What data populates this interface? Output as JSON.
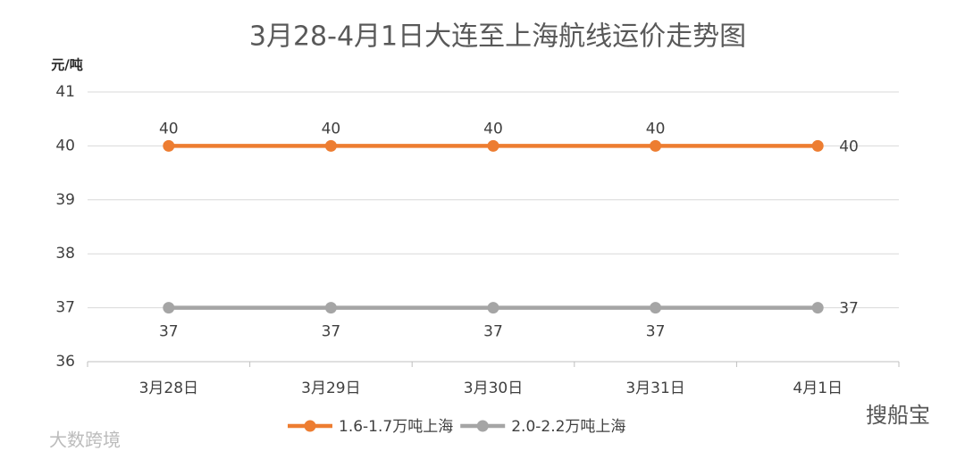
{
  "chart_data": {
    "type": "line",
    "title": "3月28-4月1日大连至上海航线运价走势图",
    "y_label": "元/吨",
    "categories": [
      "3月28日",
      "3月29日",
      "3月30日",
      "3月31日",
      "4月1日"
    ],
    "series": [
      {
        "name": "1.6-1.7万吨上海",
        "color": "#ed7d31",
        "values": [
          40,
          40,
          40,
          40,
          40
        ]
      },
      {
        "name": "2.0-2.2万吨上海",
        "color": "#a5a5a5",
        "values": [
          37,
          37,
          37,
          37,
          37
        ]
      }
    ],
    "ylim": [
      36,
      41
    ],
    "yticks": [
      36,
      37,
      38,
      39,
      40,
      41
    ],
    "grid": true,
    "legend": "bottom"
  },
  "watermarks": [
    "搜船宝",
    "大数跨境"
  ]
}
